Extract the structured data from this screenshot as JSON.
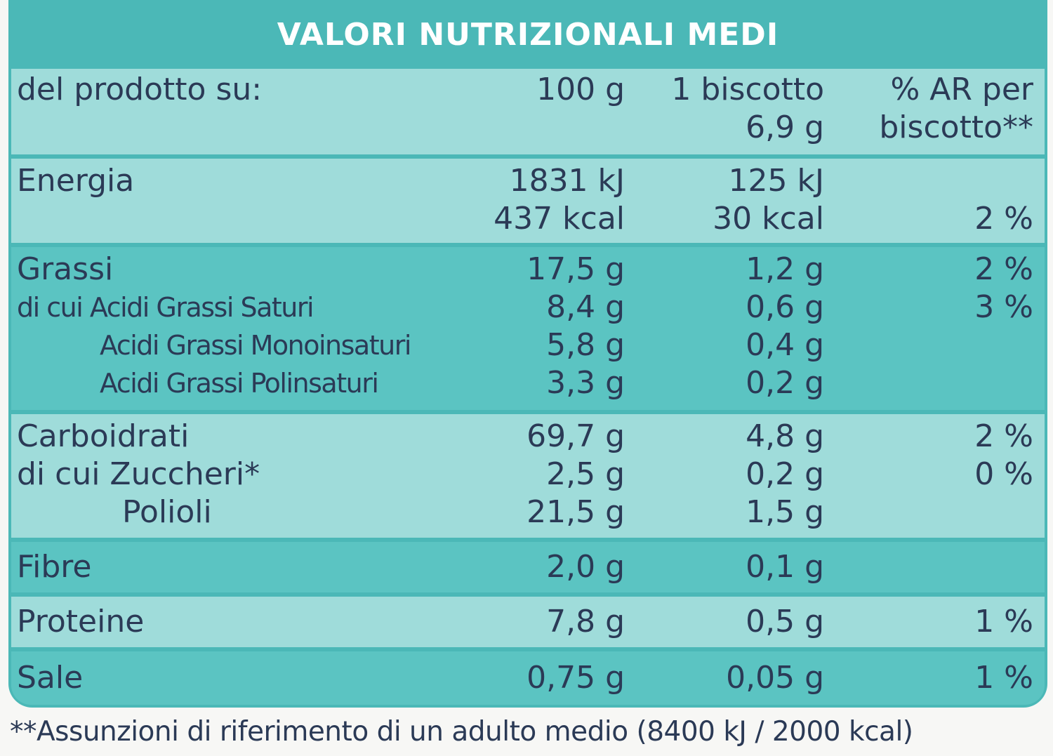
{
  "title": "VALORI NUTRIZIONALI MEDI",
  "header": {
    "label": "del prodotto su:",
    "col1": "100 g",
    "col2_line1": "1 biscotto",
    "col2_line2": "6,9 g",
    "col3_line1": "% AR per",
    "col3_line2": "biscotto**"
  },
  "energia": {
    "label": "Energia",
    "kj_100": "1831 kJ",
    "kcal_100": "437 kcal",
    "kj_bisc": "125 kJ",
    "kcal_bisc": "30 kcal",
    "ar": "2 %"
  },
  "grassi": {
    "label": "Grassi",
    "v100": "17,5 g",
    "vb": "1,2 g",
    "ar": "2 %",
    "saturi": {
      "label": "di cui Acidi Grassi Saturi",
      "v100": "8,4 g",
      "vb": "0,6 g",
      "ar": "3 %"
    },
    "mono": {
      "label": "Acidi Grassi Monoinsaturi",
      "v100": "5,8 g",
      "vb": "0,4 g"
    },
    "poli": {
      "label": "Acidi Grassi Polinsaturi",
      "v100": "3,3 g",
      "vb": "0,2 g"
    }
  },
  "carboidrati": {
    "label": "Carboidrati",
    "v100": "69,7 g",
    "vb": "4,8 g",
    "ar": "2 %",
    "zuccheri": {
      "label": "di cui Zuccheri*",
      "v100": "2,5 g",
      "vb": "0,2 g",
      "ar": "0 %"
    },
    "polioli": {
      "label": "Polioli",
      "v100": "21,5 g",
      "vb": "1,5 g"
    }
  },
  "fibre": {
    "label": "Fibre",
    "v100": "2,0 g",
    "vb": "0,1 g"
  },
  "proteine": {
    "label": "Proteine",
    "v100": "7,8 g",
    "vb": "0,5 g",
    "ar": "1 %"
  },
  "sale": {
    "label": "Sale",
    "v100": "0,75 g",
    "vb": "0,05 g",
    "ar": "1 %"
  },
  "footnote": "**Assunzioni di riferimento di un adulto medio (8400 kJ / 2000 kcal)",
  "colors": {
    "teal_dark": "#4bb8b7",
    "teal_light": "#9fdcda",
    "text": "#2b3a56"
  }
}
